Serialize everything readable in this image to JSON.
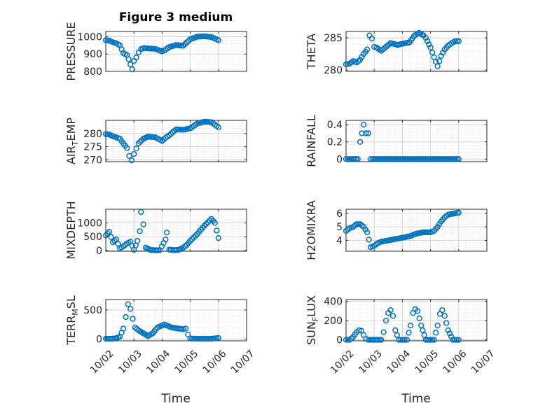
{
  "figure": {
    "title": "Figure 3 medium",
    "xlabel": "Time",
    "date_ticks": [
      "10/02",
      "10/03",
      "10/04",
      "10/05",
      "10/06",
      "10/07"
    ],
    "marker_color": "#0072BD"
  },
  "chart_data": [
    {
      "type": "scatter",
      "id": "pressure",
      "ylabel_main": "PRESSURE",
      "ylabel_sub": "",
      "yticks": [
        "800",
        "900",
        "1000"
      ],
      "ylim": [
        800,
        1030
      ],
      "x": [
        "10/02 00:00",
        "10/02 03:00",
        "10/02 06:00",
        "10/02 09:00",
        "10/02 12:00",
        "10/02 15:00",
        "10/02 18:00",
        "10/02 19:30",
        "10/02 21:00",
        "10/02 22:30",
        "10/03 00:00",
        "10/03 02:00",
        "10/03 04:00",
        "10/03 06:00",
        "10/03 09:00",
        "10/03 12:00",
        "10/03 18:00",
        "10/04 00:00",
        "10/04 03:00",
        "10/04 06:00",
        "10/04 12:00",
        "10/04 18:00",
        "10/05 00:00",
        "10/05 06:00",
        "10/05 12:00",
        "10/05 18:00",
        "10/06 00:00"
      ],
      "y": [
        980,
        978,
        968,
        962,
        950,
        905,
        895,
        870,
        840,
        812,
        860,
        880,
        910,
        928,
        935,
        932,
        930,
        915,
        925,
        940,
        952,
        948,
        985,
        1000,
        1002,
        998,
        980
      ]
    },
    {
      "type": "scatter",
      "id": "theta",
      "ylabel_main": "THETA",
      "ylabel_sub": "",
      "yticks": [
        "280",
        "285"
      ],
      "ylim": [
        279.8,
        286.0
      ],
      "x": [
        "10/02 00:00",
        "10/02 03:00",
        "10/02 06:00",
        "10/02 09:00",
        "10/02 12:00",
        "10/02 15:00",
        "10/02 18:00",
        "10/02 20:00",
        "10/02 22:00",
        "10/03 00:00",
        "10/03 02:00",
        "10/03 06:00",
        "10/03 10:00",
        "10/03 14:00",
        "10/03 20:00",
        "10/04 00:00",
        "10/04 06:00",
        "10/04 10:00",
        "10/04 14:00",
        "10/04 18:00",
        "10/04 20:00",
        "10/05 00:00",
        "10/05 03:00",
        "10/05 06:00",
        "10/05 09:00",
        "10/05 12:00",
        "10/05 15:00",
        "10/05 18:00",
        "10/05 21:00",
        "10/06 00:00"
      ],
      "y": [
        280.9,
        281.0,
        281.4,
        281.2,
        281.6,
        282.5,
        283.2,
        285.4,
        284.9,
        283.6,
        283.5,
        283.0,
        283.6,
        284.2,
        283.9,
        284.1,
        284.3,
        285.3,
        285.8,
        285.4,
        285.0,
        283.5,
        282.0,
        280.6,
        282.2,
        283.2,
        283.8,
        284.2,
        284.5,
        284.5
      ]
    },
    {
      "type": "scatter",
      "id": "air_temp",
      "ylabel_main": "AIR",
      "ylabel_sub": "T",
      "ylabel_rest": "EMP",
      "yticks": [
        "270",
        "275",
        "280"
      ],
      "ylim": [
        269.3,
        285.0
      ],
      "x": [
        "10/02 00:00",
        "10/02 03:00",
        "10/02 06:00",
        "10/02 09:00",
        "10/02 12:00",
        "10/02 15:00",
        "10/02 18:00",
        "10/02 20:00",
        "10/02 22:00",
        "10/03 00:00",
        "10/03 02:00",
        "10/03 04:00",
        "10/03 08:00",
        "10/03 12:00",
        "10/03 18:00",
        "10/04 00:00",
        "10/04 03:00",
        "10/04 06:00",
        "10/04 12:00",
        "10/04 18:00",
        "10/05 00:00",
        "10/05 06:00",
        "10/05 12:00",
        "10/05 18:00",
        "10/06 00:00"
      ],
      "y": [
        279.8,
        279.6,
        279.0,
        278.5,
        278.0,
        276.2,
        274.5,
        271.5,
        269.8,
        272.2,
        274.3,
        276.3,
        278.0,
        278.8,
        278.6,
        277.2,
        278.4,
        279.3,
        281.6,
        281.4,
        282.0,
        283.8,
        284.5,
        284.3,
        282.4
      ]
    },
    {
      "type": "scatter",
      "id": "rainfall",
      "ylabel_main": "RAINFALL",
      "ylabel_sub": "",
      "yticks": [
        "0",
        "0.2",
        "0.4"
      ],
      "ylim": [
        -0.03,
        0.45
      ],
      "x": [
        "10/02 00:00",
        "10/02 06:00",
        "10/02 10:00",
        "10/02 12:00",
        "10/02 15:00",
        "10/02 17:00",
        "10/02 19:00",
        "10/02 21:00",
        "10/03 00:00",
        "10/03 06:00",
        "10/03 12:00",
        "10/03 18:00",
        "10/04 00:00",
        "10/04 06:00",
        "10/04 12:00",
        "10/04 18:00",
        "10/05 00:00",
        "10/05 06:00",
        "10/05 12:00",
        "10/05 18:00",
        "10/06 00:00"
      ],
      "y": [
        0,
        0,
        0,
        0.2,
        0.4,
        0.3,
        0.3,
        0,
        0,
        0,
        0,
        0,
        0,
        0,
        0,
        0,
        0,
        0,
        0,
        0,
        0
      ]
    },
    {
      "type": "scatter",
      "id": "mixdepth",
      "ylabel_main": "MIXDEPTH",
      "ylabel_sub": "",
      "yticks": [
        "0",
        "500",
        "1000"
      ],
      "ylim": [
        -30,
        1500
      ],
      "x": [
        "10/02 00:00",
        "10/02 03:00",
        "10/02 06:00",
        "10/02 09:00",
        "10/02 12:00",
        "10/02 15:00",
        "10/02 18:00",
        "10/02 21:00",
        "10/03 00:00",
        "10/03 03:00",
        "10/03 05:00",
        "10/03 06:00",
        "10/03 08:00",
        "10/03 10:00",
        "10/03 14:00",
        "10/03 18:00",
        "10/03 22:00",
        "10/04 03:00",
        "10/04 04:00",
        "10/04 06:00",
        "10/04 10:00",
        "10/04 14:00",
        "10/04 18:00",
        "10/04 21:00",
        "10/05 00:00",
        "10/05 06:00",
        "10/05 12:00",
        "10/05 18:00",
        "10/05 21:00",
        "10/06 00:00"
      ],
      "y": [
        550,
        680,
        300,
        400,
        80,
        150,
        250,
        320,
        20,
        350,
        700,
        1400,
        950,
        100,
        20,
        5,
        10,
        400,
        650,
        30,
        10,
        20,
        100,
        200,
        350,
        600,
        900,
        1150,
        1000,
        450
      ]
    },
    {
      "type": "scatter",
      "id": "h2omixra",
      "ylabel_main": "H2OMIXRA",
      "ylabel_sub": "",
      "yticks": [
        "4",
        "5",
        "6"
      ],
      "ylim": [
        3.2,
        6.3
      ],
      "x": [
        "10/02 00:00",
        "10/02 03:00",
        "10/02 06:00",
        "10/02 09:00",
        "10/02 12:00",
        "10/02 15:00",
        "10/02 18:00",
        "10/02 21:00",
        "10/03 00:00",
        "10/03 03:00",
        "10/03 06:00",
        "10/03 12:00",
        "10/03 18:00",
        "10/04 00:00",
        "10/04 06:00",
        "10/04 12:00",
        "10/04 18:00",
        "10/05 00:00",
        "10/05 03:00",
        "10/05 06:00",
        "10/05 09:00",
        "10/05 12:00",
        "10/05 15:00",
        "10/05 18:00",
        "10/05 21:00",
        "10/06 00:00"
      ],
      "y": [
        4.7,
        4.9,
        5.0,
        5.2,
        5.2,
        5.0,
        4.6,
        3.5,
        3.6,
        3.8,
        3.9,
        4.0,
        4.1,
        4.2,
        4.3,
        4.5,
        4.6,
        4.6,
        4.7,
        5.0,
        5.4,
        5.7,
        5.9,
        5.95,
        6.0,
        6.05
      ]
    },
    {
      "type": "scatter",
      "id": "terr_msl",
      "ylabel_main": "TERR",
      "ylabel_sub": "M",
      "ylabel_rest": "SL",
      "yticks": [
        "0",
        "500"
      ],
      "ylim": [
        -30,
        680
      ],
      "x": [
        "10/02 00:00",
        "10/02 04:00",
        "10/02 08:00",
        "10/02 12:00",
        "10/02 15:00",
        "10/02 17:00",
        "10/02 19:00",
        "10/02 21:00",
        "10/02 23:00",
        "10/03 01:00",
        "10/03 04:00",
        "10/03 08:00",
        "10/03 12:00",
        "10/03 16:00",
        "10/03 20:00",
        "10/04 02:00",
        "10/04 08:00",
        "10/04 14:00",
        "10/04 18:00",
        "10/04 20:00",
        "10/04 22:00",
        "10/05 00:00",
        "10/05 06:00",
        "10/05 12:00",
        "10/05 18:00",
        "10/06 00:00"
      ],
      "y": [
        5,
        5,
        10,
        40,
        180,
        380,
        600,
        520,
        350,
        200,
        150,
        100,
        50,
        100,
        200,
        250,
        200,
        180,
        170,
        180,
        80,
        10,
        5,
        5,
        5,
        20
      ]
    },
    {
      "type": "scatter",
      "id": "sun_flux",
      "ylabel_main": "SUN",
      "ylabel_sub": "F",
      "ylabel_rest": "LUX",
      "yticks": [
        "0",
        "200",
        "400"
      ],
      "ylim": [
        -10,
        420
      ],
      "x": [
        "10/02 00:00",
        "10/02 03:00",
        "10/02 06:00",
        "10/02 09:00",
        "10/02 11:00",
        "10/02 13:00",
        "10/02 15:00",
        "10/02 17:00",
        "10/02 19:00",
        "10/02 22:00",
        "10/03 02:00",
        "10/03 06:00",
        "10/03 08:00",
        "10/03 10:00",
        "10/03 12:00",
        "10/03 14:00",
        "10/03 16:00",
        "10/03 18:00",
        "10/03 21:00",
        "10/04 02:00",
        "10/04 04:00",
        "10/04 07:00",
        "10/04 09:00",
        "10/04 11:00",
        "10/04 13:00",
        "10/04 16:00",
        "10/04 20:00",
        "10/05 00:00",
        "10/05 03:00",
        "10/05 06:00",
        "10/05 08:00",
        "10/05 10:00",
        "10/05 12:00",
        "10/05 15:00",
        "10/05 19:00",
        "10/06 00:00"
      ],
      "y": [
        0,
        0,
        30,
        80,
        100,
        95,
        50,
        10,
        0,
        0,
        0,
        0,
        80,
        200,
        280,
        310,
        250,
        100,
        0,
        0,
        0,
        150,
        280,
        320,
        300,
        150,
        0,
        0,
        0,
        150,
        270,
        310,
        250,
        100,
        0,
        0
      ]
    }
  ]
}
